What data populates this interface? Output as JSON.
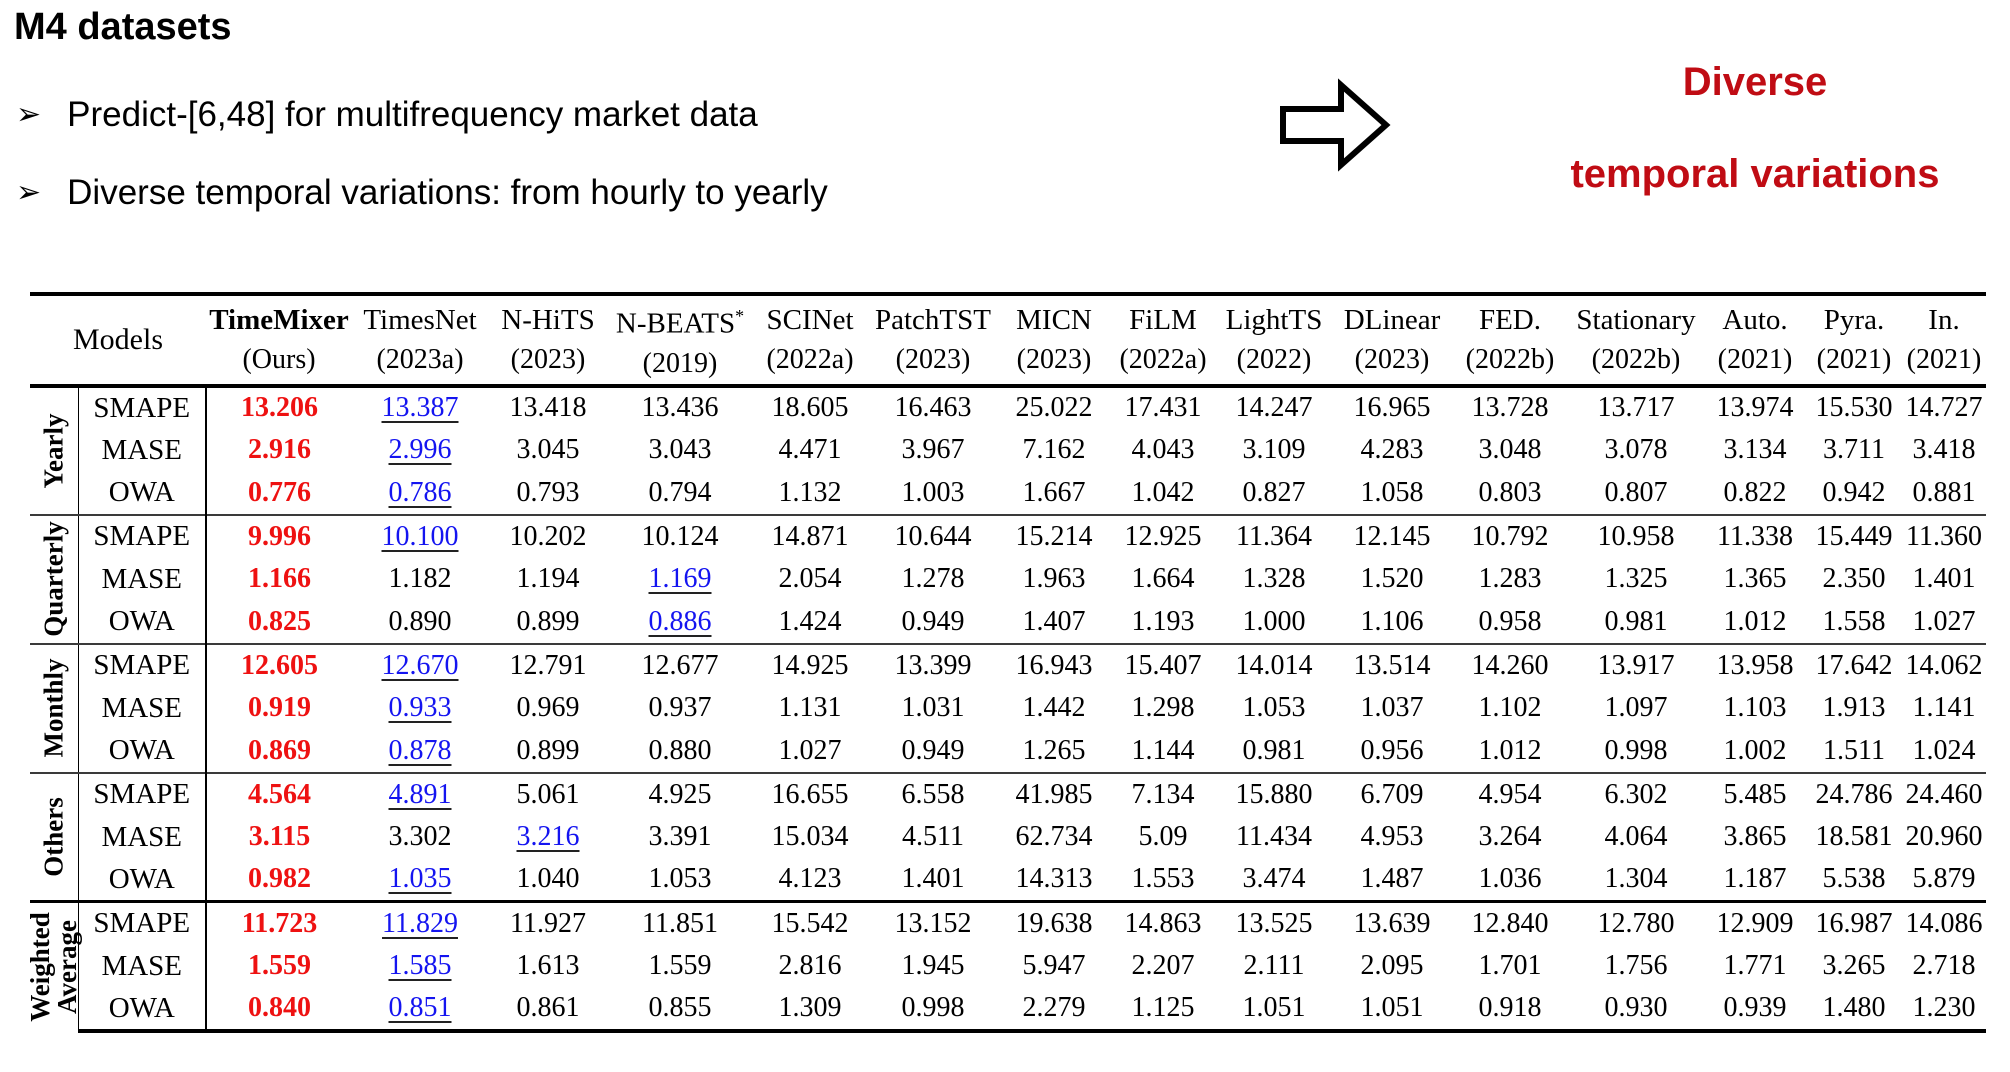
{
  "slide": {
    "title": "M4 datasets",
    "bullet_glyph": "➢",
    "bullets": [
      "Predict-[6,48] for multifrequency market data",
      "Diverse temporal variations: from hourly to yearly"
    ],
    "callout": {
      "line1": "Diverse",
      "line2": "temporal variations"
    },
    "arrow_icon": "right-block-arrow"
  },
  "colors": {
    "best_value": "#ee1111",
    "second_value": "#1414f0",
    "callout_red": "#c00c14",
    "rule": "#000000"
  },
  "table": {
    "corner_label": "Models",
    "columns": [
      {
        "name": "TimeMixer",
        "year": "(Ours)",
        "bold": true
      },
      {
        "name": "TimesNet",
        "year": "(2023a)"
      },
      {
        "name": "N-HiTS",
        "year": "(2023)"
      },
      {
        "name": "N-BEATS*",
        "year": "(2019)"
      },
      {
        "name": "SCINet",
        "year": "(2022a)"
      },
      {
        "name": "PatchTST",
        "year": "(2023)"
      },
      {
        "name": "MICN",
        "year": "(2023)"
      },
      {
        "name": "FiLM",
        "year": "(2022a)"
      },
      {
        "name": "LightTS",
        "year": "(2022)"
      },
      {
        "name": "DLinear",
        "year": "(2023)"
      },
      {
        "name": "FED.",
        "year": "(2022b)"
      },
      {
        "name": "Stationary",
        "year": "(2022b)"
      },
      {
        "name": "Auto.",
        "year": "(2021)"
      },
      {
        "name": "Pyra.",
        "year": "(2021)"
      },
      {
        "name": "In.",
        "year": "(2021)"
      }
    ],
    "groups": [
      {
        "label": "Yearly",
        "rows": [
          {
            "metric": "SMAPE",
            "second": 1,
            "values": [
              "13.206",
              "13.387",
              "13.418",
              "13.436",
              "18.605",
              "16.463",
              "25.022",
              "17.431",
              "14.247",
              "16.965",
              "13.728",
              "13.717",
              "13.974",
              "15.530",
              "14.727"
            ]
          },
          {
            "metric": "MASE",
            "second": 1,
            "values": [
              "2.916",
              "2.996",
              "3.045",
              "3.043",
              "4.471",
              "3.967",
              "7.162",
              "4.043",
              "3.109",
              "4.283",
              "3.048",
              "3.078",
              "3.134",
              "3.711",
              "3.418"
            ]
          },
          {
            "metric": "OWA",
            "second": 1,
            "values": [
              "0.776",
              "0.786",
              "0.793",
              "0.794",
              "1.132",
              "1.003",
              "1.667",
              "1.042",
              "0.827",
              "1.058",
              "0.803",
              "0.807",
              "0.822",
              "0.942",
              "0.881"
            ]
          }
        ]
      },
      {
        "label": "Quarterly",
        "rows": [
          {
            "metric": "SMAPE",
            "second": 1,
            "values": [
              "9.996",
              "10.100",
              "10.202",
              "10.124",
              "14.871",
              "10.644",
              "15.214",
              "12.925",
              "11.364",
              "12.145",
              "10.792",
              "10.958",
              "11.338",
              "15.449",
              "11.360"
            ]
          },
          {
            "metric": "MASE",
            "second": 3,
            "values": [
              "1.166",
              "1.182",
              "1.194",
              "1.169",
              "2.054",
              "1.278",
              "1.963",
              "1.664",
              "1.328",
              "1.520",
              "1.283",
              "1.325",
              "1.365",
              "2.350",
              "1.401"
            ]
          },
          {
            "metric": "OWA",
            "second": 3,
            "values": [
              "0.825",
              "0.890",
              "0.899",
              "0.886",
              "1.424",
              "0.949",
              "1.407",
              "1.193",
              "1.000",
              "1.106",
              "0.958",
              "0.981",
              "1.012",
              "1.558",
              "1.027"
            ]
          }
        ]
      },
      {
        "label": "Monthly",
        "rows": [
          {
            "metric": "SMAPE",
            "second": 1,
            "values": [
              "12.605",
              "12.670",
              "12.791",
              "12.677",
              "14.925",
              "13.399",
              "16.943",
              "15.407",
              "14.014",
              "13.514",
              "14.260",
              "13.917",
              "13.958",
              "17.642",
              "14.062"
            ]
          },
          {
            "metric": "MASE",
            "second": 1,
            "values": [
              "0.919",
              "0.933",
              "0.969",
              "0.937",
              "1.131",
              "1.031",
              "1.442",
              "1.298",
              "1.053",
              "1.037",
              "1.102",
              "1.097",
              "1.103",
              "1.913",
              "1.141"
            ]
          },
          {
            "metric": "OWA",
            "second": 1,
            "values": [
              "0.869",
              "0.878",
              "0.899",
              "0.880",
              "1.027",
              "0.949",
              "1.265",
              "1.144",
              "0.981",
              "0.956",
              "1.012",
              "0.998",
              "1.002",
              "1.511",
              "1.024"
            ]
          }
        ]
      },
      {
        "label": "Others",
        "rows": [
          {
            "metric": "SMAPE",
            "second": 1,
            "values": [
              "4.564",
              "4.891",
              "5.061",
              "4.925",
              "16.655",
              "6.558",
              "41.985",
              "7.134",
              "15.880",
              "6.709",
              "4.954",
              "6.302",
              "5.485",
              "24.786",
              "24.460"
            ]
          },
          {
            "metric": "MASE",
            "second": 2,
            "values": [
              "3.115",
              "3.302",
              "3.216",
              "3.391",
              "15.034",
              "4.511",
              "62.734",
              "5.09",
              "11.434",
              "4.953",
              "3.264",
              "4.064",
              "3.865",
              "18.581",
              "20.960"
            ]
          },
          {
            "metric": "OWA",
            "second": 1,
            "values": [
              "0.982",
              "1.035",
              "1.040",
              "1.053",
              "4.123",
              "1.401",
              "14.313",
              "1.553",
              "3.474",
              "1.487",
              "1.036",
              "1.304",
              "1.187",
              "5.538",
              "5.879"
            ]
          }
        ]
      },
      {
        "label": "Weighted Average",
        "label_lines": [
          "Weighted",
          "Average"
        ],
        "rows": [
          {
            "metric": "SMAPE",
            "second": 1,
            "values": [
              "11.723",
              "11.829",
              "11.927",
              "11.851",
              "15.542",
              "13.152",
              "19.638",
              "14.863",
              "13.525",
              "13.639",
              "12.840",
              "12.780",
              "12.909",
              "16.987",
              "14.086"
            ]
          },
          {
            "metric": "MASE",
            "second": 1,
            "values": [
              "1.559",
              "1.585",
              "1.613",
              "1.559",
              "2.816",
              "1.945",
              "5.947",
              "2.207",
              "2.111",
              "2.095",
              "1.701",
              "1.756",
              "1.771",
              "3.265",
              "2.718"
            ]
          },
          {
            "metric": "OWA",
            "second": 1,
            "values": [
              "0.840",
              "0.851",
              "0.861",
              "0.855",
              "1.309",
              "0.998",
              "2.279",
              "1.125",
              "1.051",
              "1.051",
              "0.918",
              "0.930",
              "0.939",
              "1.480",
              "1.230"
            ]
          }
        ]
      }
    ]
  }
}
